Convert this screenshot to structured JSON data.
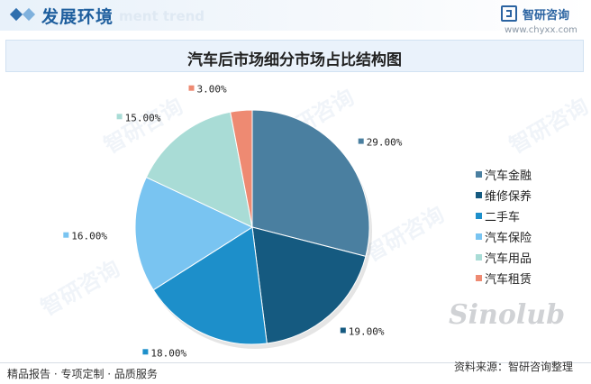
{
  "header": {
    "section_title": "发展环境",
    "ghost_text": "ment trend",
    "brand_name": "智研咨询",
    "brand_url": "www.chyxx.com"
  },
  "chart_data": {
    "type": "pie",
    "title": "汽车后市场细分市场占比结构图",
    "slices": [
      {
        "name": "汽车金融",
        "value": 29,
        "label": "29.00%",
        "color": "#4a7fa0"
      },
      {
        "name": "维修保养",
        "value": 19,
        "label": "19.00%",
        "color": "#155a80"
      },
      {
        "name": "二手车",
        "value": 18,
        "label": "18.00%",
        "color": "#1d8fca"
      },
      {
        "name": "汽车保险",
        "value": 16,
        "label": "16.00%",
        "color": "#79c4f1"
      },
      {
        "name": "汽车用品",
        "value": 15,
        "label": "15.00%",
        "color": "#a9dcd6"
      },
      {
        "name": "汽车租赁",
        "value": 3,
        "label": "3.00%",
        "color": "#ee8a72"
      }
    ],
    "start_angle_deg": 0,
    "direction": "clockwise",
    "legend_position": "right"
  },
  "watermark_text": "智研咨询",
  "stamp_text": "Sinolub",
  "footer": {
    "left": "精品报告 · 专项定制 · 品质服务",
    "right": "资料来源：智研咨询整理"
  }
}
